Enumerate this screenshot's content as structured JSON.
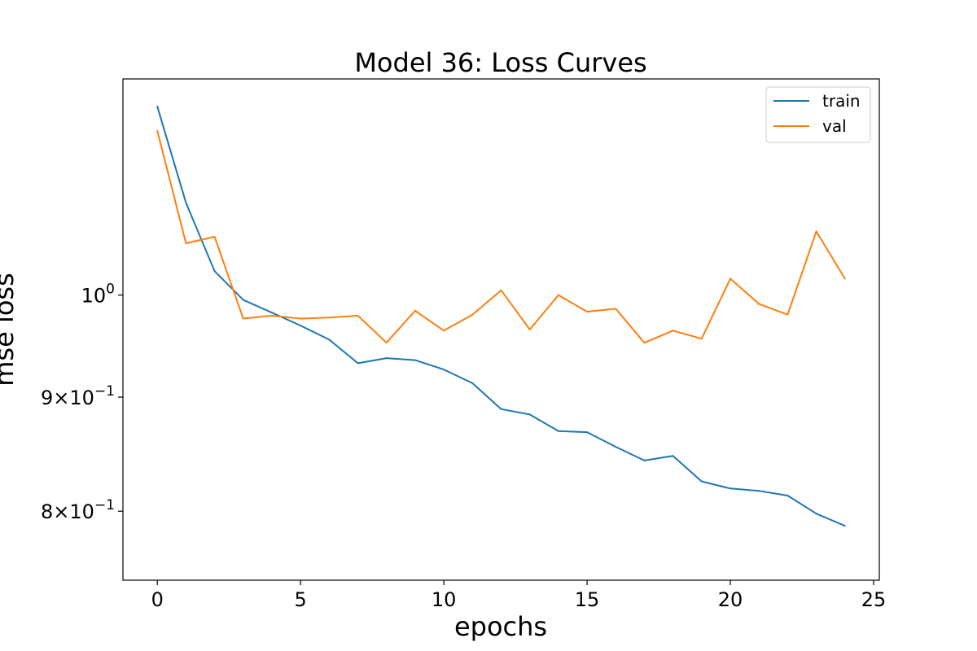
{
  "chart_data": {
    "type": "line",
    "title": "Model 36: Loss Curves",
    "xlabel": "epochs",
    "ylabel": "mse loss",
    "yscale": "log",
    "xlim": [
      -1.2,
      25.2
    ],
    "ylim": [
      0.745,
      1.25
    ],
    "xticks": [
      0,
      5,
      10,
      15,
      20,
      25
    ],
    "yticks": [
      {
        "value": 1.0,
        "base": "10",
        "exp": "0",
        "mantissa": ""
      },
      {
        "value": 0.9,
        "base": "10",
        "exp": "−1",
        "mantissa": "9×"
      },
      {
        "value": 0.8,
        "base": "10",
        "exp": "−1",
        "mantissa": "8×"
      }
    ],
    "legend": {
      "position": "top-right"
    },
    "x": [
      0,
      1,
      2,
      3,
      4,
      5,
      6,
      7,
      8,
      9,
      10,
      11,
      12,
      13,
      14,
      15,
      16,
      17,
      18,
      19,
      20,
      21,
      22,
      23,
      24
    ],
    "series": [
      {
        "name": "train",
        "color": "#1f77b4",
        "values": [
          1.215,
          1.1,
          1.025,
          0.995,
          0.982,
          0.969,
          0.955,
          0.932,
          0.937,
          0.935,
          0.926,
          0.913,
          0.889,
          0.884,
          0.869,
          0.868,
          0.855,
          0.843,
          0.847,
          0.825,
          0.819,
          0.817,
          0.813,
          0.798,
          0.788
        ]
      },
      {
        "name": "val",
        "color": "#ff7f0e",
        "values": [
          1.185,
          1.055,
          1.062,
          0.976,
          0.979,
          0.976,
          0.977,
          0.979,
          0.952,
          0.984,
          0.964,
          0.98,
          1.005,
          0.965,
          1.0,
          0.983,
          0.986,
          0.952,
          0.964,
          0.956,
          1.017,
          0.991,
          0.98,
          1.068,
          1.017
        ]
      }
    ]
  }
}
